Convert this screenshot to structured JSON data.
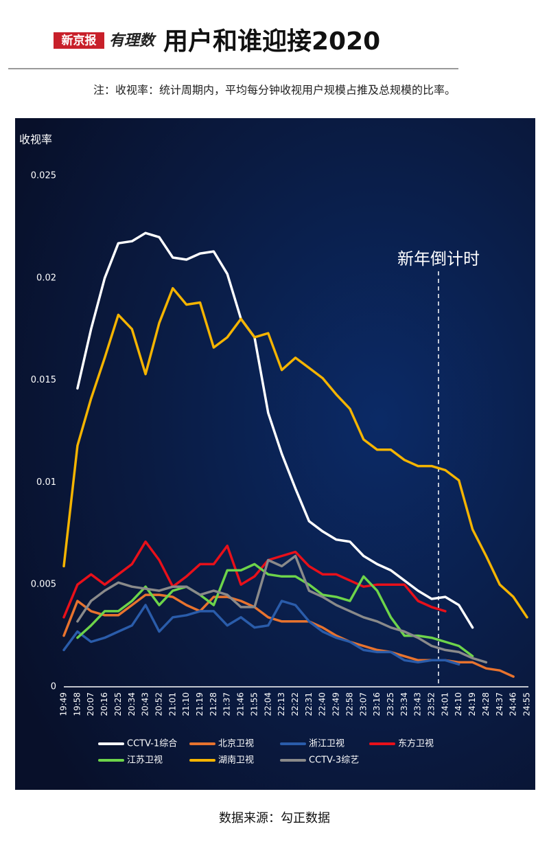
{
  "header": {
    "logo": "新京报",
    "brand": "有理数"
  },
  "chart_data": {
    "type": "line",
    "title": "用户和谁迎接2020",
    "note": "注：收视率：统计周期内，平均每分钟收视用户规模占推及总规模的比率。",
    "y_label": "收视率",
    "annotation": "新年倒计时",
    "source": "数据来源：勾正数据",
    "categories": [
      "19:49",
      "19:58",
      "20:07",
      "20:16",
      "20:25",
      "20:34",
      "20:43",
      "20:52",
      "21:01",
      "21:10",
      "21:19",
      "21:28",
      "21:37",
      "21:46",
      "21:55",
      "22:04",
      "22:13",
      "22:22",
      "22:31",
      "22:40",
      "22:49",
      "22:58",
      "23:07",
      "23:16",
      "23:25",
      "23:34",
      "23:43",
      "23:52",
      "24:01",
      "24:10",
      "24:19",
      "24:28",
      "24:37",
      "24:46",
      "24:55"
    ],
    "ylim": [
      0,
      0.025
    ],
    "yticks": [
      0,
      0.005,
      0.01,
      0.015,
      0.02,
      0.025
    ],
    "series": [
      {
        "name": "CCTV-1综合",
        "color": "#ffffff",
        "values": [
          null,
          0.0146,
          0.0175,
          0.02,
          0.0217,
          0.0218,
          0.0222,
          0.022,
          0.021,
          0.0209,
          0.0212,
          0.0213,
          0.0202,
          0.018,
          0.0171,
          0.0134,
          0.0114,
          0.0097,
          0.0081,
          0.0076,
          0.0072,
          0.0071,
          0.0064,
          0.006,
          0.0057,
          0.0052,
          0.0047,
          0.0043,
          0.0044,
          0.004,
          0.0029,
          null,
          null,
          null,
          null
        ]
      },
      {
        "name": "北京卫视",
        "color": "#e8732e",
        "values": [
          0.0025,
          0.0042,
          0.0037,
          0.0035,
          0.0035,
          0.004,
          0.0045,
          0.0045,
          0.0044,
          0.004,
          0.0037,
          0.0044,
          0.0044,
          0.0042,
          0.0039,
          0.0034,
          0.0032,
          0.0032,
          0.0032,
          0.0029,
          0.0025,
          0.0022,
          0.002,
          0.0018,
          0.0017,
          0.0015,
          0.0013,
          0.0013,
          0.0013,
          0.0012,
          0.0012,
          0.0009,
          0.0008,
          0.0005,
          null
        ]
      },
      {
        "name": "浙江卫视",
        "color": "#2a5caa",
        "values": [
          0.0018,
          0.0027,
          0.0022,
          0.0024,
          0.0027,
          0.003,
          0.004,
          0.0027,
          0.0034,
          0.0035,
          0.0037,
          0.0037,
          0.003,
          0.0034,
          0.0029,
          0.003,
          0.0042,
          0.004,
          0.0032,
          0.0027,
          0.0024,
          0.0022,
          0.0018,
          0.0017,
          0.0017,
          0.0013,
          0.0012,
          0.0013,
          0.0013,
          0.0011,
          null,
          null,
          null,
          null,
          null
        ]
      },
      {
        "name": "东方卫视",
        "color": "#e8101a",
        "values": [
          0.0034,
          0.005,
          0.0055,
          0.005,
          0.0055,
          0.006,
          0.0071,
          0.0062,
          0.0049,
          0.0054,
          0.006,
          0.006,
          0.0069,
          0.005,
          0.0054,
          0.0062,
          0.0064,
          0.0066,
          0.0059,
          0.0055,
          0.0055,
          0.0052,
          0.0049,
          0.005,
          0.005,
          0.005,
          0.0042,
          0.0039,
          0.0037,
          null,
          null,
          null,
          null,
          null,
          null
        ]
      },
      {
        "name": "江苏卫视",
        "color": "#6dd44a",
        "values": [
          null,
          0.0024,
          0.003,
          0.0037,
          0.0037,
          0.0042,
          0.0049,
          0.004,
          0.0047,
          0.0049,
          0.0045,
          0.004,
          0.0057,
          0.0057,
          0.006,
          0.0055,
          0.0054,
          0.0054,
          0.005,
          0.0045,
          0.0044,
          0.0042,
          0.0054,
          0.0047,
          0.0034,
          0.0025,
          0.0025,
          0.0024,
          0.0022,
          0.002,
          0.0015,
          null,
          null,
          null,
          null
        ]
      },
      {
        "name": "湖南卫视",
        "color": "#f5b400",
        "values": [
          0.0059,
          0.0118,
          0.0141,
          0.0161,
          0.0182,
          0.0175,
          0.0153,
          0.0178,
          0.0195,
          0.0187,
          0.0188,
          0.0166,
          0.0171,
          0.018,
          0.0171,
          0.0173,
          0.0155,
          0.0161,
          0.0156,
          0.0151,
          0.0143,
          0.0136,
          0.0121,
          0.0116,
          0.0116,
          0.0111,
          0.0108,
          0.0108,
          0.0106,
          0.0101,
          0.0077,
          0.0064,
          0.005,
          0.0044,
          0.0034
        ]
      },
      {
        "name": "CCTV-3综艺",
        "color": "#8a8a8a",
        "values": [
          null,
          0.0032,
          0.0042,
          0.0047,
          0.0051,
          0.0049,
          0.0048,
          0.0047,
          0.0049,
          0.0049,
          0.0045,
          0.0047,
          0.0045,
          0.0039,
          0.0039,
          0.0062,
          0.0059,
          0.0064,
          0.0047,
          0.0044,
          0.004,
          0.0037,
          0.0034,
          0.0032,
          0.0029,
          0.0027,
          0.0024,
          0.002,
          0.0018,
          0.0017,
          0.0014,
          0.0012,
          null,
          null,
          null
        ]
      }
    ]
  }
}
